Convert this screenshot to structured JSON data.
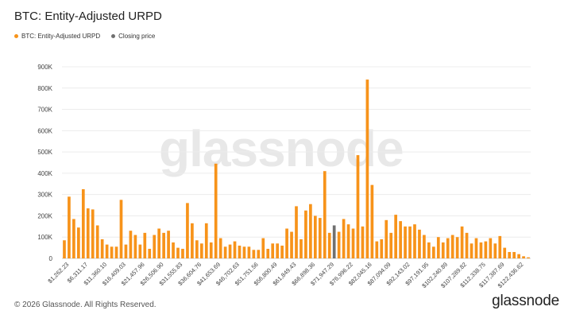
{
  "title": "BTC: Entity-Adjusted URPD",
  "legend": [
    {
      "name": "BTC: Entity-Adjusted URPD",
      "color": "#f7931a"
    },
    {
      "name": "Closing price",
      "color": "#707070"
    }
  ],
  "watermark": "glassnode",
  "footer": {
    "copyright": "© 2026 Glassnode. All Rights Reserved.",
    "logo": "glassnode"
  },
  "chart_data": {
    "type": "bar",
    "ylim": [
      0,
      900000
    ],
    "yticks": [
      "0",
      "100K",
      "200K",
      "300K",
      "400K",
      "500K",
      "600K",
      "700K",
      "800K",
      "900K"
    ],
    "xtick_labels": [
      "$1,262.23",
      "$6,311.17",
      "$11,360.10",
      "$16,409.03",
      "$21,457.96",
      "$26,506.90",
      "$31,555.83",
      "$36,604.76",
      "$41,653.69",
      "$46,702.63",
      "$51,751.56",
      "$56,800.49",
      "$61,849.43",
      "$66,898.36",
      "$71,947.29",
      "$76,996.22",
      "$82,045.16",
      "$87,094.09",
      "$92,143.02",
      "$97,191.95",
      "$102,240.89",
      "$107,289.82",
      "$112,338.75",
      "$117,387.69",
      "$122,436.62"
    ],
    "closing_price_index": 57,
    "series": [
      {
        "name": "BTC: Entity-Adjusted URPD",
        "color": "#f7931a",
        "values": [
          85000,
          290000,
          185000,
          145000,
          325000,
          235000,
          230000,
          155000,
          90000,
          65000,
          55000,
          55000,
          275000,
          65000,
          130000,
          110000,
          65000,
          120000,
          45000,
          110000,
          140000,
          120000,
          130000,
          75000,
          50000,
          45000,
          260000,
          165000,
          85000,
          70000,
          165000,
          75000,
          445000,
          95000,
          55000,
          65000,
          80000,
          60000,
          55000,
          55000,
          40000,
          40000,
          95000,
          45000,
          70000,
          70000,
          60000,
          140000,
          125000,
          245000,
          90000,
          225000,
          255000,
          200000,
          190000,
          410000,
          120000,
          155000,
          125000,
          185000,
          160000,
          140000,
          485000,
          150000,
          840000,
          345000,
          80000,
          90000,
          180000,
          120000,
          205000,
          175000,
          150000,
          150000,
          160000,
          135000,
          110000,
          75000,
          55000,
          100000,
          75000,
          95000,
          110000,
          100000,
          150000,
          120000,
          70000,
          95000,
          75000,
          80000,
          95000,
          70000,
          105000,
          50000,
          30000,
          30000,
          20000,
          10000,
          5000
        ]
      }
    ]
  }
}
